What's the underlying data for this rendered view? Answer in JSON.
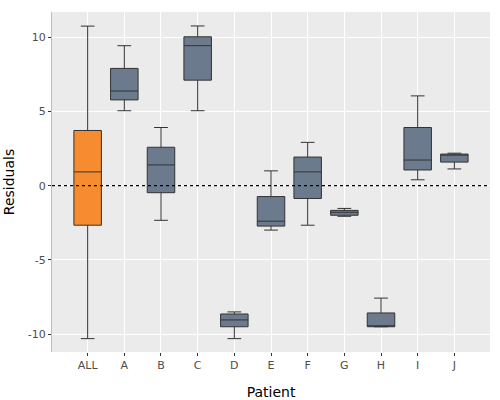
{
  "chart_data": {
    "type": "box",
    "x_label": "Patient",
    "y_label": "Residuals",
    "categories": [
      "ALL",
      "A",
      "B",
      "C",
      "D",
      "E",
      "F",
      "G",
      "H",
      "I",
      "J"
    ],
    "lower": [
      -10.3,
      5.05,
      -2.33,
      5.05,
      -10.3,
      -2.99,
      -2.66,
      -2.06,
      -9.5,
      0.4,
      1.13
    ],
    "q1": [
      -2.66,
      5.78,
      -0.47,
      7.11,
      -9.5,
      -2.72,
      -0.86,
      -1.99,
      -9.5,
      1.06,
      1.59
    ],
    "median": [
      0.93,
      6.38,
      1.4,
      9.43,
      -9.04,
      -2.39,
      0.93,
      -1.79,
      -9.44,
      1.73,
      2.06
    ],
    "q3": [
      3.72,
      7.9,
      2.59,
      10.03,
      -8.64,
      -0.73,
      1.93,
      -1.66,
      -8.57,
      3.92,
      2.13
    ],
    "upper": [
      10.75,
      9.43,
      3.92,
      10.76,
      -8.5,
      1.0,
      2.92,
      -1.53,
      -7.57,
      6.05,
      2.19
    ],
    "colors": [
      "#F68B2F",
      "#6C7A8D",
      "#6C7A8D",
      "#6C7A8D",
      "#6C7A8D",
      "#6C7A8D",
      "#6C7A8D",
      "#6C7A8D",
      "#6C7A8D",
      "#6C7A8D",
      "#6C7A8D"
    ],
    "ylim": [
      -11.2,
      11.7
    ],
    "yticks": [
      -10,
      -5,
      0,
      5,
      10
    ],
    "grid": true,
    "hline": 0
  }
}
